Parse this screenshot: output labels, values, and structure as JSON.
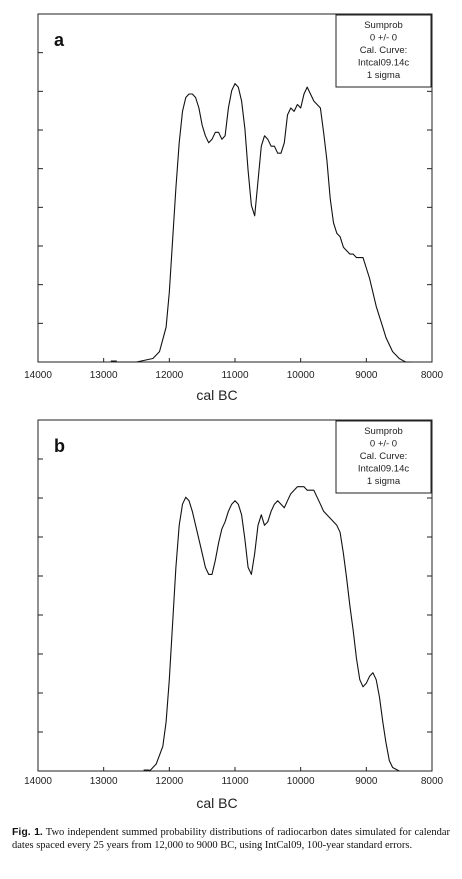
{
  "chart_data": [
    {
      "type": "line",
      "panel_label": "a",
      "xlabel": "cal BC",
      "xlim": [
        14000,
        8000
      ],
      "xticks": [
        14000,
        13000,
        12000,
        11000,
        10000,
        9000,
        8000
      ],
      "ylim": [
        0,
        1
      ],
      "grid": false,
      "legend_position": "top-right",
      "legend_lines": [
        "Sumprob",
        "0 +/- 0",
        "Cal. Curve:",
        "Intcal09.14c",
        "1 sigma"
      ],
      "x": [
        12800,
        12500,
        12250,
        12150,
        12050,
        12000,
        11950,
        11900,
        11850,
        11800,
        11750,
        11700,
        11650,
        11600,
        11550,
        11500,
        11450,
        11400,
        11350,
        11300,
        11250,
        11200,
        11150,
        11100,
        11050,
        11000,
        10950,
        10900,
        10850,
        10800,
        10750,
        10700,
        10650,
        10600,
        10550,
        10500,
        10450,
        10400,
        10350,
        10300,
        10250,
        10200,
        10150,
        10100,
        10050,
        10000,
        9950,
        9900,
        9850,
        9800,
        9750,
        9700,
        9650,
        9600,
        9550,
        9500,
        9450,
        9400,
        9350,
        9300,
        9250,
        9200,
        9150,
        9100,
        9050,
        9000,
        8950,
        8900,
        8850,
        8800,
        8750,
        8700,
        8650,
        8600,
        8550,
        8500,
        8450,
        8400,
        8350,
        8300
      ],
      "values": [
        0.0,
        0.0,
        0.01,
        0.03,
        0.1,
        0.2,
        0.35,
        0.5,
        0.63,
        0.72,
        0.76,
        0.77,
        0.77,
        0.76,
        0.73,
        0.68,
        0.65,
        0.63,
        0.64,
        0.66,
        0.66,
        0.64,
        0.65,
        0.73,
        0.78,
        0.8,
        0.79,
        0.75,
        0.67,
        0.55,
        0.45,
        0.42,
        0.52,
        0.62,
        0.65,
        0.64,
        0.62,
        0.62,
        0.6,
        0.6,
        0.63,
        0.71,
        0.73,
        0.72,
        0.74,
        0.73,
        0.77,
        0.79,
        0.77,
        0.75,
        0.74,
        0.73,
        0.66,
        0.58,
        0.47,
        0.4,
        0.37,
        0.36,
        0.33,
        0.32,
        0.31,
        0.31,
        0.3,
        0.3,
        0.3,
        0.27,
        0.24,
        0.2,
        0.16,
        0.13,
        0.1,
        0.07,
        0.05,
        0.03,
        0.02,
        0.01,
        0.005,
        0.0,
        0.0,
        0.0
      ]
    },
    {
      "type": "line",
      "panel_label": "b",
      "xlabel": "cal BC",
      "xlim": [
        14000,
        8000
      ],
      "xticks": [
        14000,
        13000,
        12000,
        11000,
        10000,
        9000,
        8000
      ],
      "ylim": [
        0,
        1
      ],
      "grid": false,
      "legend_position": "top-right",
      "legend_lines": [
        "Sumprob",
        "0 +/- 0",
        "Cal. Curve:",
        "Intcal09.14c",
        "1 sigma"
      ],
      "x": [
        12300,
        12200,
        12100,
        12050,
        12000,
        11950,
        11900,
        11850,
        11800,
        11750,
        11700,
        11650,
        11600,
        11550,
        11500,
        11450,
        11400,
        11350,
        11300,
        11250,
        11200,
        11150,
        11100,
        11050,
        11000,
        10950,
        10900,
        10850,
        10800,
        10750,
        10700,
        10650,
        10600,
        10550,
        10500,
        10450,
        10400,
        10350,
        10300,
        10250,
        10200,
        10150,
        10100,
        10050,
        10000,
        9950,
        9900,
        9850,
        9800,
        9750,
        9700,
        9650,
        9600,
        9550,
        9500,
        9450,
        9400,
        9350,
        9300,
        9250,
        9200,
        9150,
        9100,
        9050,
        9000,
        8950,
        8900,
        8850,
        8800,
        8750,
        8700,
        8650,
        8600,
        8550,
        8500
      ],
      "values": [
        0.0,
        0.02,
        0.07,
        0.14,
        0.26,
        0.42,
        0.58,
        0.7,
        0.76,
        0.78,
        0.77,
        0.74,
        0.7,
        0.66,
        0.62,
        0.58,
        0.56,
        0.56,
        0.6,
        0.65,
        0.69,
        0.71,
        0.74,
        0.76,
        0.77,
        0.76,
        0.73,
        0.66,
        0.58,
        0.56,
        0.62,
        0.7,
        0.73,
        0.7,
        0.71,
        0.74,
        0.76,
        0.77,
        0.76,
        0.75,
        0.77,
        0.79,
        0.8,
        0.81,
        0.81,
        0.81,
        0.8,
        0.8,
        0.8,
        0.78,
        0.76,
        0.74,
        0.73,
        0.72,
        0.71,
        0.7,
        0.68,
        0.62,
        0.55,
        0.47,
        0.4,
        0.32,
        0.26,
        0.24,
        0.25,
        0.27,
        0.28,
        0.26,
        0.21,
        0.14,
        0.08,
        0.03,
        0.01,
        0.005,
        0.0
      ]
    }
  ],
  "caption": {
    "label": "Fig. 1.",
    "text": "Two independent summed probability distributions of radiocarbon dates simulated for calendar dates spaced every 25 years from 12,000 to 9000 BC, using IntCal09, 100-year standard errors."
  }
}
